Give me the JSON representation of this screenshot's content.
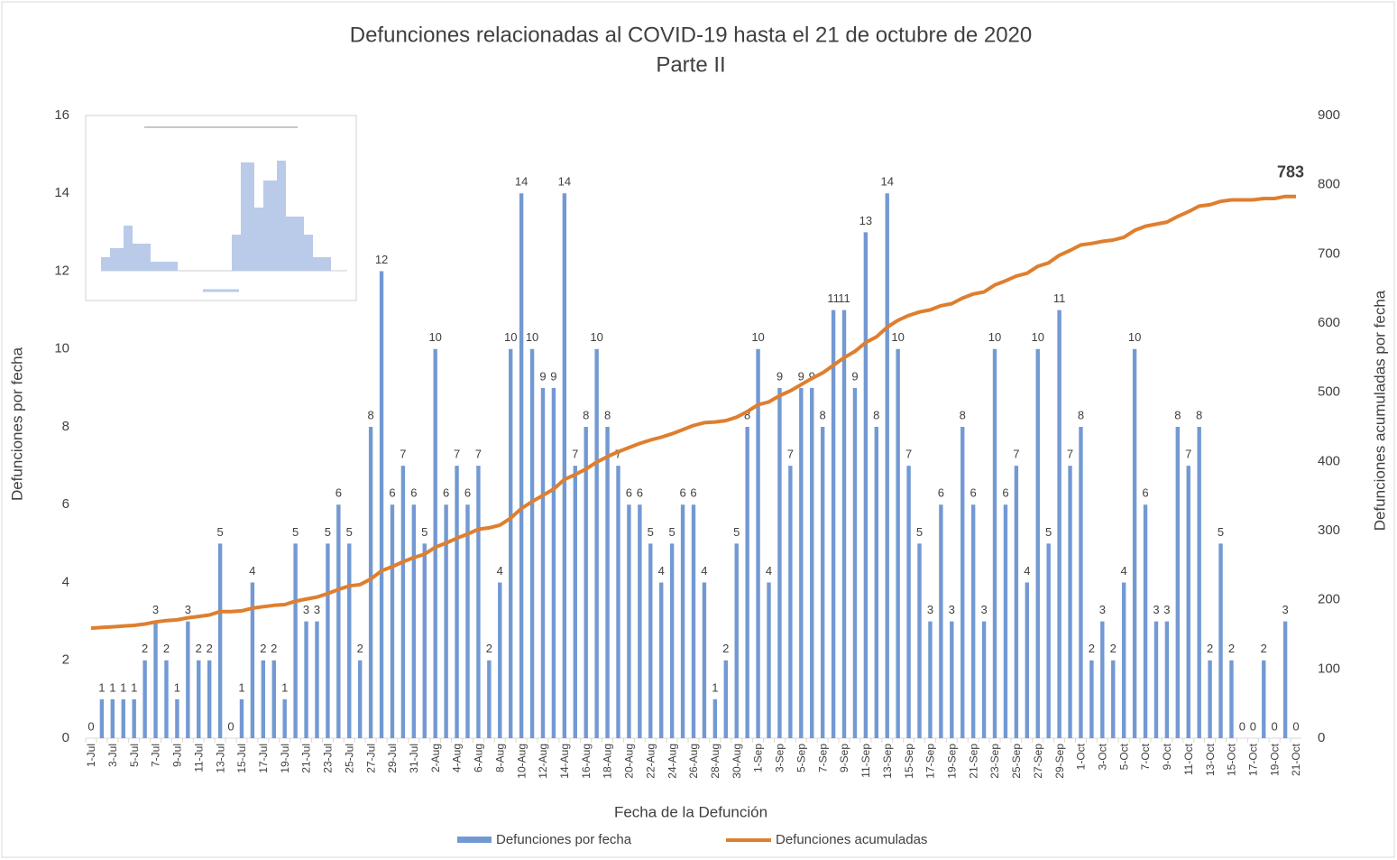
{
  "chart_data": {
    "type": "bar",
    "title": "Defunciones relacionadas al COVID-19 hasta el 21 de octubre de 2020",
    "subtitle": "Parte II",
    "x_label": "Fecha de la Defunción",
    "y_label": "Defunciones por fecha",
    "y2_label": "Defunciones acumuladas por fecha",
    "categories": [
      "1-Jul",
      null,
      "3-Jul",
      null,
      "5-Jul",
      null,
      "7-Jul",
      null,
      "9-Jul",
      null,
      "11-Jul",
      null,
      "13-Jul",
      null,
      "15-Jul",
      null,
      "17-Jul",
      null,
      "19-Jul",
      null,
      "21-Jul",
      null,
      "23-Jul",
      null,
      "25-Jul",
      null,
      "27-Jul",
      null,
      "29-Jul",
      null,
      "31-Jul",
      null,
      "2-Aug",
      null,
      "4-Aug",
      null,
      "6-Aug",
      null,
      "8-Aug",
      null,
      "10-Aug",
      null,
      "12-Aug",
      null,
      "14-Aug",
      null,
      "16-Aug",
      null,
      "18-Aug",
      null,
      "20-Aug",
      null,
      "22-Aug",
      null,
      "24-Aug",
      null,
      "26-Aug",
      null,
      "28-Aug",
      null,
      "30-Aug",
      null,
      "1-Sep",
      null,
      "3-Sep",
      null,
      "5-Sep",
      null,
      "7-Sep",
      null,
      "9-Sep",
      null,
      "11-Sep",
      null,
      "13-Sep",
      null,
      "15-Sep",
      null,
      "17-Sep",
      null,
      "19-Sep",
      null,
      "21-Sep",
      null,
      "23-Sep",
      null,
      "25-Sep",
      null,
      "27-Sep",
      null,
      "29-Sep",
      null,
      "1-Oct",
      null,
      "3-Oct",
      null,
      "5-Oct",
      null,
      "7-Oct",
      null,
      "9-Oct",
      null,
      "11-Oct",
      null,
      "13-Oct",
      null,
      "15-Oct",
      null,
      "17-Oct",
      null,
      "19-Oct",
      null,
      "21-Oct"
    ],
    "series": [
      {
        "name": "Defunciones por fecha",
        "type": "bar",
        "color": "#7399d3",
        "values": [
          0,
          1,
          1,
          1,
          1,
          2,
          3,
          2,
          1,
          3,
          2,
          2,
          5,
          0,
          1,
          4,
          2,
          2,
          1,
          5,
          3,
          3,
          5,
          6,
          5,
          2,
          8,
          12,
          6,
          7,
          6,
          5,
          10,
          6,
          7,
          6,
          7,
          2,
          4,
          10,
          14,
          10,
          9,
          9,
          14,
          7,
          8,
          10,
          8,
          7,
          6,
          6,
          5,
          4,
          5,
          6,
          6,
          4,
          1,
          2,
          5,
          8,
          10,
          4,
          9,
          7,
          9,
          9,
          8,
          11,
          11,
          9,
          13,
          8,
          14,
          10,
          7,
          5,
          3,
          6,
          3,
          8,
          6,
          3,
          10,
          6,
          7,
          4,
          10,
          5,
          11,
          7,
          8,
          2,
          3,
          2,
          4,
          10,
          6,
          3,
          3,
          8,
          7,
          8,
          2,
          5,
          2,
          0,
          0,
          2,
          0,
          3,
          0
        ]
      },
      {
        "name": "Defunciones acumuladas",
        "type": "line",
        "axis": "y2",
        "color": "#de7f2f",
        "values": [
          159,
          160,
          161,
          162,
          163,
          165,
          168,
          170,
          171,
          174,
          176,
          178,
          183,
          183,
          184,
          188,
          190,
          192,
          193,
          198,
          201,
          204,
          209,
          215,
          220,
          222,
          230,
          242,
          248,
          255,
          261,
          266,
          276,
          282,
          289,
          295,
          302,
          304,
          308,
          318,
          332,
          342,
          351,
          360,
          374,
          381,
          389,
          399,
          407,
          414,
          420,
          426,
          431,
          435,
          440,
          446,
          452,
          456,
          457,
          459,
          464,
          472,
          482,
          486,
          495,
          502,
          511,
          520,
          528,
          539,
          550,
          559,
          572,
          580,
          594,
          604,
          611,
          616,
          619,
          625,
          628,
          636,
          642,
          645,
          655,
          661,
          668,
          672,
          682,
          687,
          698,
          705,
          713,
          715,
          718,
          720,
          724,
          734,
          740,
          743,
          746,
          754,
          761,
          769,
          771,
          776,
          778,
          778,
          778,
          780,
          780,
          783,
          783
        ]
      }
    ],
    "ylim": [
      0,
      16
    ],
    "yticks": [
      0,
      2,
      4,
      6,
      8,
      10,
      12,
      14,
      16
    ],
    "y2lim": [
      0,
      900
    ],
    "y2ticks": [
      0,
      100,
      200,
      300,
      400,
      500,
      600,
      700,
      800,
      900
    ]
  }
}
